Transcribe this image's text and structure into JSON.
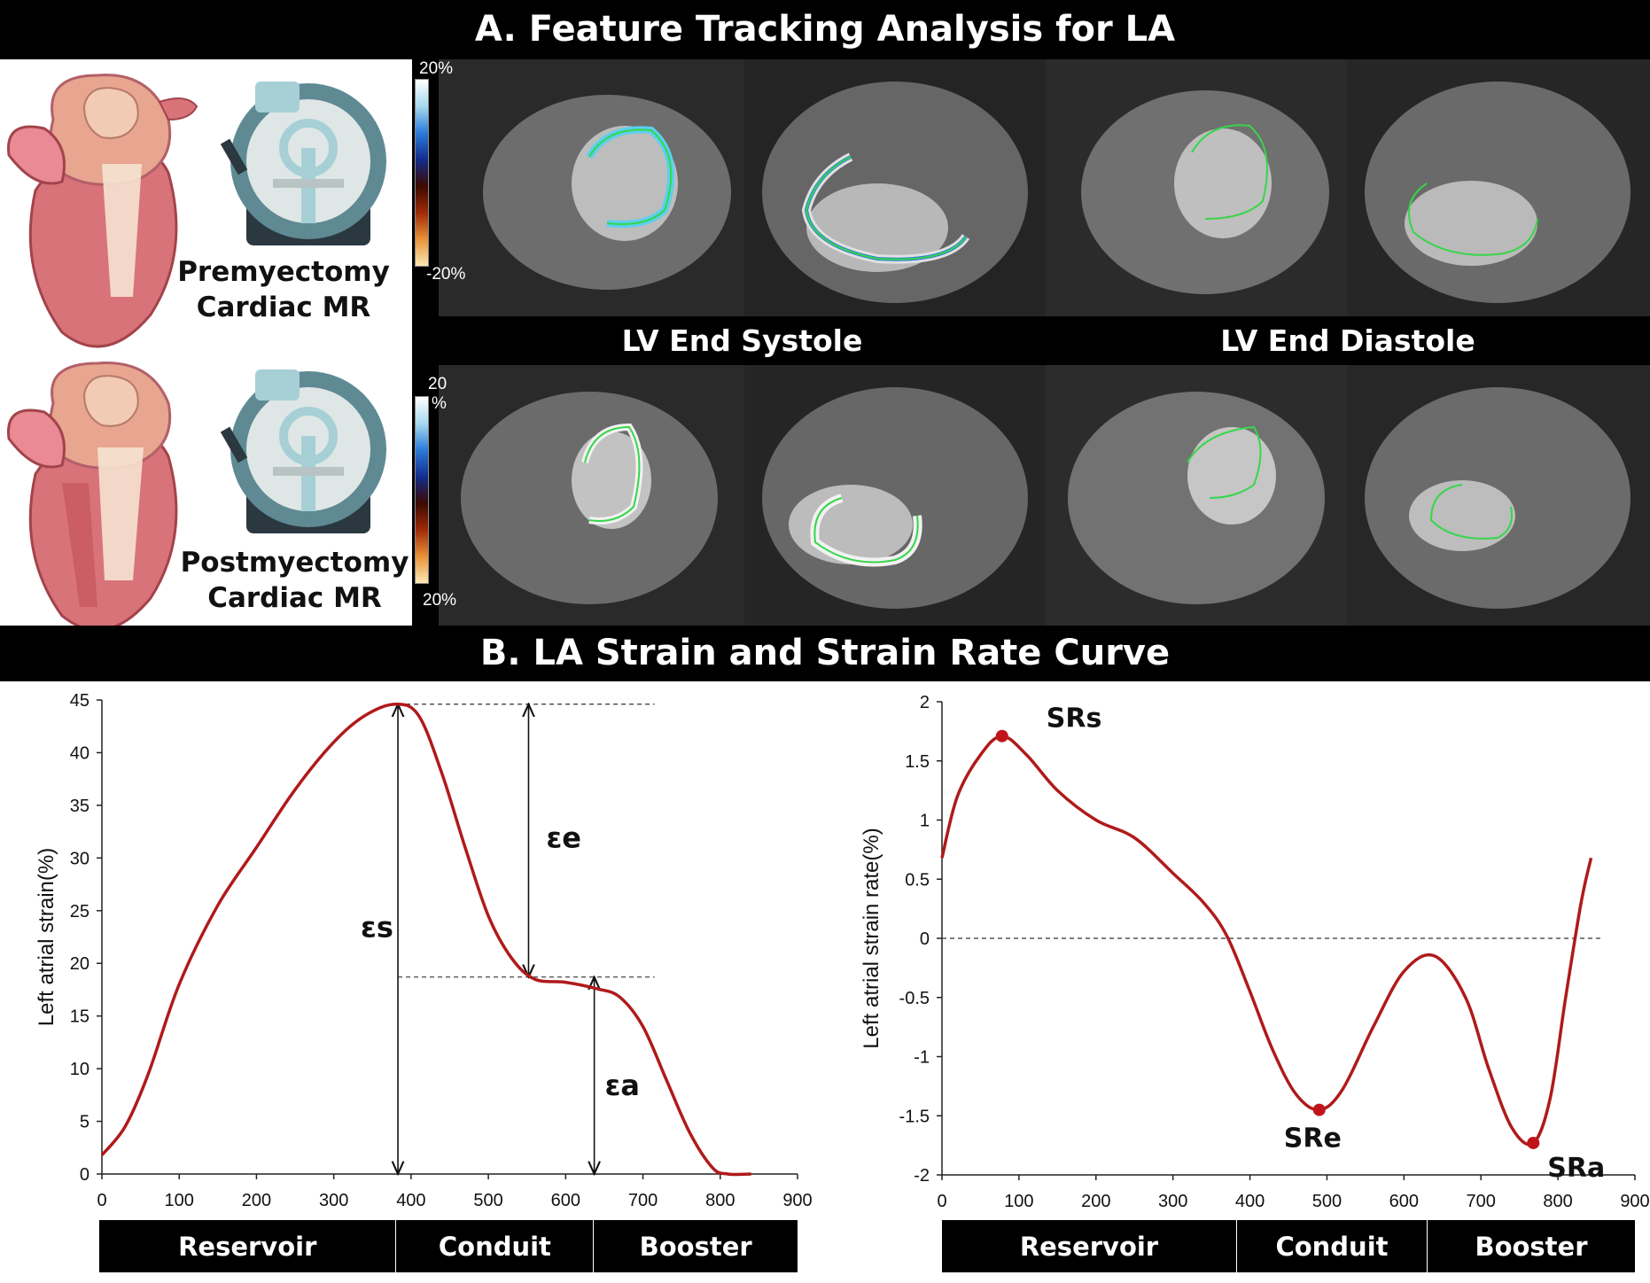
{
  "sectionA": {
    "title": "A. Feature Tracking Analysis for LA",
    "pre_label": "Premyectomy Cardiac MR",
    "post_label": "Postmyectomy Cardiac MR",
    "colorbar_top": {
      "max": "20%",
      "min": "-20%"
    },
    "colorbar_bottom": {
      "max_line1": "20",
      "max_line2": "%",
      "min": "20%"
    },
    "es_label": "LV End Systole",
    "ed_label": "LV End Diastole"
  },
  "sectionB": {
    "title": "B.  LA Strain and Strain Rate Curve"
  },
  "chart_data": [
    {
      "type": "line",
      "ylabel": "Left atrial strain(%)",
      "xlim": [
        0,
        900
      ],
      "ylim": [
        0,
        45
      ],
      "xticks": [
        0,
        100,
        200,
        300,
        400,
        500,
        600,
        700,
        800,
        900
      ],
      "yticks": [
        0,
        5,
        10,
        15,
        20,
        25,
        30,
        35,
        40,
        45
      ],
      "x": [
        0,
        30,
        60,
        100,
        150,
        200,
        250,
        300,
        340,
        380,
        410,
        440,
        470,
        500,
        530,
        560,
        600,
        640,
        670,
        700,
        730,
        760,
        790,
        810,
        840
      ],
      "y": [
        1.8,
        4.5,
        9.5,
        18.0,
        25.5,
        31.0,
        36.5,
        41.0,
        43.5,
        44.6,
        43.5,
        38.0,
        31.0,
        24.5,
        20.5,
        18.5,
        18.2,
        17.6,
        16.8,
        14.0,
        9.0,
        4.0,
        0.6,
        0.0,
        0.0
      ],
      "annotations": {
        "es": {
          "label": "εs",
          "x": 383,
          "from": 0,
          "to": 44.6
        },
        "ee": {
          "label": "εe",
          "x": 552,
          "from": 18.7,
          "to": 44.6
        },
        "ea": {
          "label": "εa",
          "x": 637,
          "from": 0,
          "to": 18.7
        },
        "ref_high": 44.6,
        "ref_low": 18.7,
        "ref_high_x": [
          383,
          715
        ],
        "ref_low_x": [
          383,
          715
        ]
      },
      "phases": [
        {
          "label": "Reservoir",
          "from": 0,
          "to": 383
        },
        {
          "label": "Conduit",
          "from": 383,
          "to": 637
        },
        {
          "label": "Booster",
          "from": 637,
          "to": 900
        }
      ]
    },
    {
      "type": "line",
      "ylabel": "Left atrial strain rate(%)",
      "xlim": [
        0,
        900
      ],
      "ylim": [
        -2,
        2
      ],
      "xticks": [
        0,
        100,
        200,
        300,
        400,
        500,
        600,
        700,
        800,
        900
      ],
      "yticks": [
        -2,
        -1.5,
        -1,
        -0.5,
        0,
        0.5,
        1,
        1.5,
        2
      ],
      "x": [
        0,
        20,
        50,
        78,
        110,
        150,
        200,
        250,
        300,
        340,
        370,
        400,
        430,
        460,
        490,
        520,
        560,
        600,
        640,
        680,
        710,
        740,
        768,
        790,
        810,
        830,
        843
      ],
      "y": [
        0.68,
        1.2,
        1.55,
        1.71,
        1.55,
        1.25,
        1.0,
        0.85,
        0.55,
        0.3,
        0.02,
        -0.45,
        -0.95,
        -1.32,
        -1.45,
        -1.28,
        -0.75,
        -0.28,
        -0.15,
        -0.5,
        -1.1,
        -1.6,
        -1.73,
        -1.35,
        -0.5,
        0.3,
        0.68
      ],
      "zero_ref_x": [
        0,
        855
      ],
      "markers": [
        {
          "label": "SRs",
          "x": 78,
          "y": 1.71
        },
        {
          "label": "SRe",
          "x": 490,
          "y": -1.45
        },
        {
          "label": "SRa",
          "x": 768,
          "y": -1.73
        }
      ],
      "phases": [
        {
          "label": "Reservoir",
          "from": 0,
          "to": 383
        },
        {
          "label": "Conduit",
          "from": 383,
          "to": 630
        },
        {
          "label": "Booster",
          "from": 630,
          "to": 900
        }
      ]
    }
  ],
  "colors": {
    "curve": "#b01a1a",
    "marker": "#c0141a",
    "banner": "#000000"
  }
}
